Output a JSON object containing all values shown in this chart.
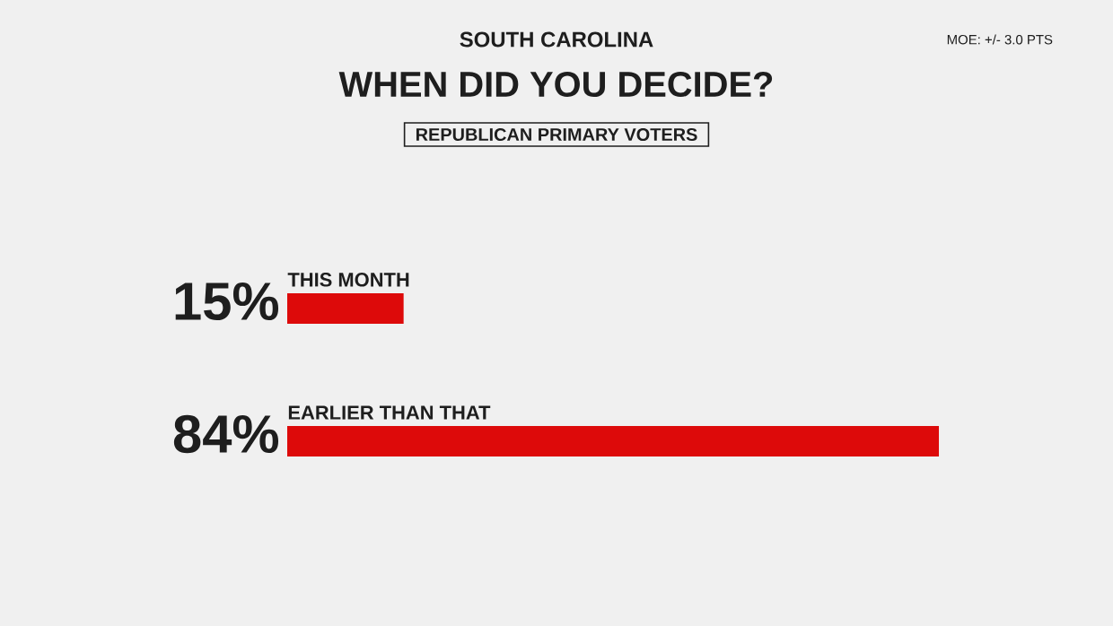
{
  "chart_data": {
    "type": "bar",
    "orientation": "horizontal",
    "title": "WHEN DID YOU DECIDE?",
    "subtitle": "REPUBLICAN PRIMARY VOTERS",
    "annotations": [
      "SOUTH CAROLINA",
      "MOE: +/- 3.0 PTS"
    ],
    "categories": [
      "THIS MONTH",
      "EARLIER THAN THAT"
    ],
    "values": [
      15,
      84
    ],
    "value_labels": [
      "15%",
      "84%"
    ],
    "color": "#dd0a0a"
  }
}
